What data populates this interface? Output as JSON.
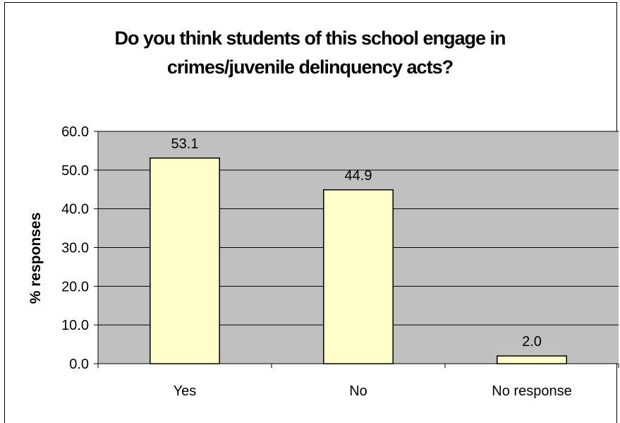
{
  "chart_data": {
    "type": "bar",
    "title_lines": [
      "Do you think students of this school engage in",
      "crimes/juvenile delinquency acts?"
    ],
    "xlabel": "",
    "ylabel": "% responses",
    "categories": [
      "Yes",
      "No",
      "No response"
    ],
    "values": [
      53.1,
      44.9,
      2.0
    ],
    "data_labels": [
      "53.1",
      "44.9",
      "2.0"
    ],
    "ylim": [
      0,
      60
    ],
    "yticks": [
      0,
      10,
      20,
      30,
      40,
      50,
      60
    ],
    "ytick_labels": [
      "0.0",
      "10.0",
      "20.0",
      "30.0",
      "40.0",
      "50.0",
      "60.0"
    ],
    "grid": true,
    "legend": "none",
    "colors": {
      "plot_background": "#c0c0c0",
      "bar_fill": "#ffffcc",
      "bar_stroke": "#000000",
      "gridline": "#000000"
    }
  }
}
